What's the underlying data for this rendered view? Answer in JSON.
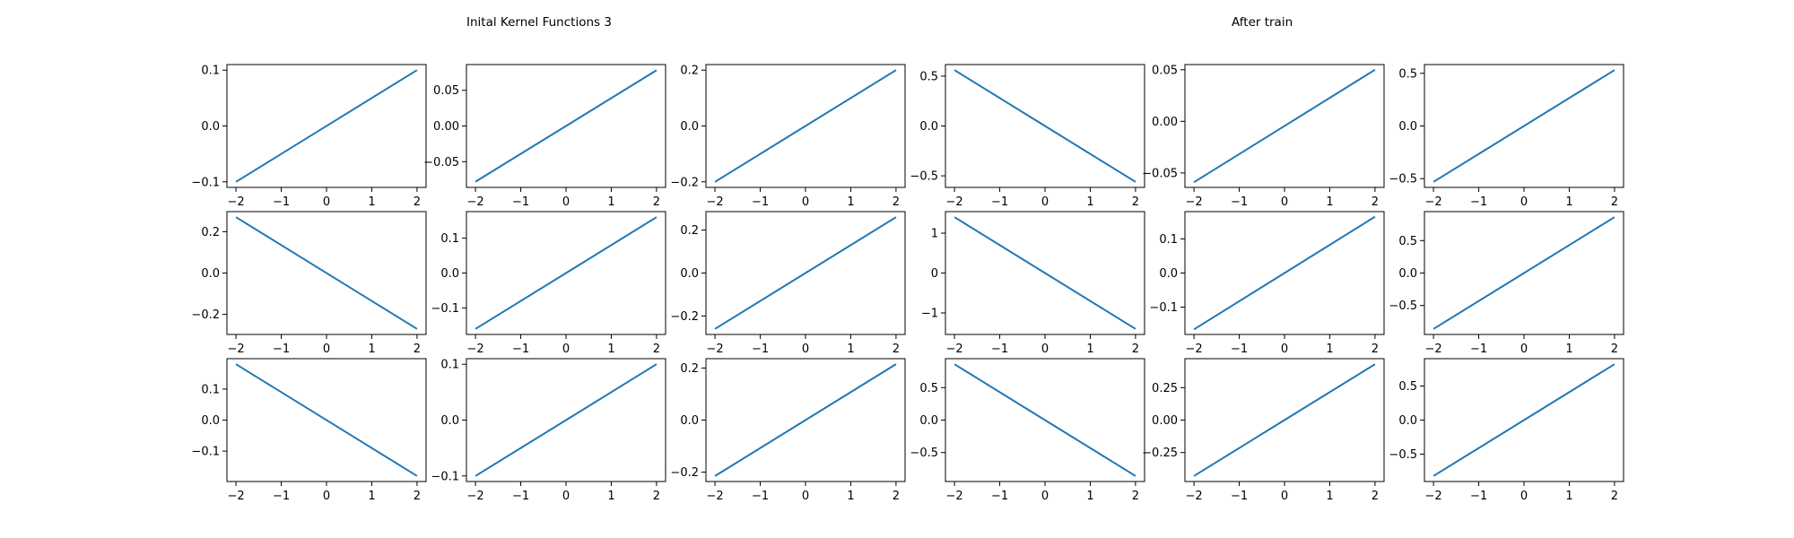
{
  "titles": {
    "left": "Inital Kernel Functions 3",
    "right": "After train"
  },
  "style": {
    "line_color": "#1f77b4",
    "axes_color": "#000000",
    "background": "#ffffff"
  },
  "chart_data": [
    {
      "type": "line",
      "x": [
        -2,
        2
      ],
      "y": [
        -0.1,
        0.1
      ],
      "xlim": [
        -2.2,
        2.2
      ],
      "ylim": [
        -0.11,
        0.11
      ],
      "xticks": [
        -2,
        -1,
        0,
        1,
        2
      ],
      "xtick_labels": [
        "−2",
        "−1",
        "0",
        "1",
        "2"
      ],
      "yticks": [
        -0.1,
        0.0,
        0.1
      ],
      "ytick_labels": [
        "−0.1",
        "0.0",
        "0.1"
      ],
      "grid": false
    },
    {
      "type": "line",
      "x": [
        -2,
        2
      ],
      "y": [
        -0.078,
        0.078
      ],
      "xlim": [
        -2.2,
        2.2
      ],
      "ylim": [
        -0.086,
        0.086
      ],
      "xticks": [
        -2,
        -1,
        0,
        1,
        2
      ],
      "xtick_labels": [
        "−2",
        "−1",
        "0",
        "1",
        "2"
      ],
      "yticks": [
        -0.05,
        0.0,
        0.05
      ],
      "ytick_labels": [
        "−0.05",
        "0.00",
        "0.05"
      ],
      "grid": false
    },
    {
      "type": "line",
      "x": [
        -2,
        2
      ],
      "y": [
        -0.2,
        0.2
      ],
      "xlim": [
        -2.2,
        2.2
      ],
      "ylim": [
        -0.22,
        0.22
      ],
      "xticks": [
        -2,
        -1,
        0,
        1,
        2
      ],
      "xtick_labels": [
        "−2",
        "−1",
        "0",
        "1",
        "2"
      ],
      "yticks": [
        -0.2,
        0.0,
        0.2
      ],
      "ytick_labels": [
        "−0.2",
        "0.0",
        "0.2"
      ],
      "grid": false
    },
    {
      "type": "line",
      "x": [
        -2,
        2
      ],
      "y": [
        0.56,
        -0.56
      ],
      "xlim": [
        -2.2,
        2.2
      ],
      "ylim": [
        -0.616,
        0.616
      ],
      "xticks": [
        -2,
        -1,
        0,
        1,
        2
      ],
      "xtick_labels": [
        "−2",
        "−1",
        "0",
        "1",
        "2"
      ],
      "yticks": [
        -0.5,
        0.0,
        0.5
      ],
      "ytick_labels": [
        "−0.5",
        "0.0",
        "0.5"
      ],
      "grid": false
    },
    {
      "type": "line",
      "x": [
        -2,
        2
      ],
      "y": [
        -0.059,
        0.05
      ],
      "xlim": [
        -2.2,
        2.2
      ],
      "ylim": [
        -0.064,
        0.055
      ],
      "xticks": [
        -2,
        -1,
        0,
        1,
        2
      ],
      "xtick_labels": [
        "−2",
        "−1",
        "0",
        "1",
        "2"
      ],
      "yticks": [
        -0.05,
        0.0,
        0.05
      ],
      "ytick_labels": [
        "−0.05",
        "0.00",
        "0.05"
      ],
      "grid": false
    },
    {
      "type": "line",
      "x": [
        -2,
        2
      ],
      "y": [
        -0.53,
        0.53
      ],
      "xlim": [
        -2.2,
        2.2
      ],
      "ylim": [
        -0.583,
        0.583
      ],
      "xticks": [
        -2,
        -1,
        0,
        1,
        2
      ],
      "xtick_labels": [
        "−2",
        "−1",
        "0",
        "1",
        "2"
      ],
      "yticks": [
        -0.5,
        0.0,
        0.5
      ],
      "ytick_labels": [
        "−0.5",
        "0.0",
        "0.5"
      ],
      "grid": false
    },
    {
      "type": "line",
      "x": [
        -2,
        2
      ],
      "y": [
        0.27,
        -0.27
      ],
      "xlim": [
        -2.2,
        2.2
      ],
      "ylim": [
        -0.297,
        0.297
      ],
      "xticks": [
        -2,
        -1,
        0,
        1,
        2
      ],
      "xtick_labels": [
        "−2",
        "−1",
        "0",
        "1",
        "2"
      ],
      "yticks": [
        -0.2,
        0.0,
        0.2
      ],
      "ytick_labels": [
        "−0.2",
        "0.0",
        "0.2"
      ],
      "grid": false
    },
    {
      "type": "line",
      "x": [
        -2,
        2
      ],
      "y": [
        -0.16,
        0.16
      ],
      "xlim": [
        -2.2,
        2.2
      ],
      "ylim": [
        -0.176,
        0.176
      ],
      "xticks": [
        -2,
        -1,
        0,
        1,
        2
      ],
      "xtick_labels": [
        "−2",
        "−1",
        "0",
        "1",
        "2"
      ],
      "yticks": [
        -0.1,
        0.0,
        0.1
      ],
      "ytick_labels": [
        "−0.1",
        "0.0",
        "0.1"
      ],
      "grid": false
    },
    {
      "type": "line",
      "x": [
        -2,
        2
      ],
      "y": [
        -0.26,
        0.26
      ],
      "xlim": [
        -2.2,
        2.2
      ],
      "ylim": [
        -0.286,
        0.286
      ],
      "xticks": [
        -2,
        -1,
        0,
        1,
        2
      ],
      "xtick_labels": [
        "−2",
        "−1",
        "0",
        "1",
        "2"
      ],
      "yticks": [
        -0.2,
        0.0,
        0.2
      ],
      "ytick_labels": [
        "−0.2",
        "0.0",
        "0.2"
      ],
      "grid": false
    },
    {
      "type": "line",
      "x": [
        -2,
        2
      ],
      "y": [
        1.4,
        -1.4
      ],
      "xlim": [
        -2.2,
        2.2
      ],
      "ylim": [
        -1.54,
        1.54
      ],
      "xticks": [
        -2,
        -1,
        0,
        1,
        2
      ],
      "xtick_labels": [
        "−2",
        "−1",
        "0",
        "1",
        "2"
      ],
      "yticks": [
        -1,
        0,
        1
      ],
      "ytick_labels": [
        "−1",
        "0",
        "1"
      ],
      "grid": false
    },
    {
      "type": "line",
      "x": [
        -2,
        2
      ],
      "y": [
        -0.165,
        0.165
      ],
      "xlim": [
        -2.2,
        2.2
      ],
      "ylim": [
        -0.18,
        0.18
      ],
      "xticks": [
        -2,
        -1,
        0,
        1,
        2
      ],
      "xtick_labels": [
        "−2",
        "−1",
        "0",
        "1",
        "2"
      ],
      "yticks": [
        -0.1,
        0.0,
        0.1
      ],
      "ytick_labels": [
        "−0.1",
        "0.0",
        "0.1"
      ],
      "grid": false
    },
    {
      "type": "line",
      "x": [
        -2,
        2
      ],
      "y": [
        -0.86,
        0.86
      ],
      "xlim": [
        -2.2,
        2.2
      ],
      "ylim": [
        -0.946,
        0.946
      ],
      "xticks": [
        -2,
        -1,
        0,
        1,
        2
      ],
      "xtick_labels": [
        "−2",
        "−1",
        "0",
        "1",
        "2"
      ],
      "yticks": [
        -0.5,
        0.0,
        0.5
      ],
      "ytick_labels": [
        "−0.5",
        "0.0",
        "0.5"
      ],
      "grid": false
    },
    {
      "type": "line",
      "x": [
        -2,
        2
      ],
      "y": [
        0.18,
        -0.18
      ],
      "xlim": [
        -2.2,
        2.2
      ],
      "ylim": [
        -0.198,
        0.198
      ],
      "xticks": [
        -2,
        -1,
        0,
        1,
        2
      ],
      "xtick_labels": [
        "−2",
        "−1",
        "0",
        "1",
        "2"
      ],
      "yticks": [
        -0.1,
        0.0,
        0.1
      ],
      "ytick_labels": [
        "−0.1",
        "0.0",
        "0.1"
      ],
      "grid": false
    },
    {
      "type": "line",
      "x": [
        -2,
        2
      ],
      "y": [
        -0.1,
        0.1
      ],
      "xlim": [
        -2.2,
        2.2
      ],
      "ylim": [
        -0.11,
        0.11
      ],
      "xticks": [
        -2,
        -1,
        0,
        1,
        2
      ],
      "xtick_labels": [
        "−2",
        "−1",
        "0",
        "1",
        "2"
      ],
      "yticks": [
        -0.1,
        0.0,
        0.1
      ],
      "ytick_labels": [
        "−0.1",
        "0.0",
        "0.1"
      ],
      "grid": false
    },
    {
      "type": "line",
      "x": [
        -2,
        2
      ],
      "y": [
        -0.215,
        0.215
      ],
      "xlim": [
        -2.2,
        2.2
      ],
      "ylim": [
        -0.236,
        0.236
      ],
      "xticks": [
        -2,
        -1,
        0,
        1,
        2
      ],
      "xtick_labels": [
        "−2",
        "−1",
        "0",
        "1",
        "2"
      ],
      "yticks": [
        -0.2,
        0.0,
        0.2
      ],
      "ytick_labels": [
        "−0.2",
        "0.0",
        "0.2"
      ],
      "grid": false
    },
    {
      "type": "line",
      "x": [
        -2,
        2
      ],
      "y": [
        0.86,
        -0.86
      ],
      "xlim": [
        -2.2,
        2.2
      ],
      "ylim": [
        -0.946,
        0.946
      ],
      "xticks": [
        -2,
        -1,
        0,
        1,
        2
      ],
      "xtick_labels": [
        "−2",
        "−1",
        "0",
        "1",
        "2"
      ],
      "yticks": [
        -0.5,
        0.0,
        0.5
      ],
      "ytick_labels": [
        "−0.5",
        "0.0",
        "0.5"
      ],
      "grid": false
    },
    {
      "type": "line",
      "x": [
        -2,
        2
      ],
      "y": [
        -0.43,
        0.43
      ],
      "xlim": [
        -2.2,
        2.2
      ],
      "ylim": [
        -0.473,
        0.473
      ],
      "xticks": [
        -2,
        -1,
        0,
        1,
        2
      ],
      "xtick_labels": [
        "−2",
        "−1",
        "0",
        "1",
        "2"
      ],
      "yticks": [
        -0.25,
        0.0,
        0.25
      ],
      "ytick_labels": [
        "−0.25",
        "0.00",
        "0.25"
      ],
      "grid": false
    },
    {
      "type": "line",
      "x": [
        -2,
        2
      ],
      "y": [
        -0.82,
        0.82
      ],
      "xlim": [
        -2.2,
        2.2
      ],
      "ylim": [
        -0.902,
        0.902
      ],
      "xticks": [
        -2,
        -1,
        0,
        1,
        2
      ],
      "xtick_labels": [
        "−2",
        "−1",
        "0",
        "1",
        "2"
      ],
      "yticks": [
        -0.5,
        0.0,
        0.5
      ],
      "ytick_labels": [
        "−0.5",
        "0.0",
        "0.5"
      ],
      "grid": false
    }
  ]
}
